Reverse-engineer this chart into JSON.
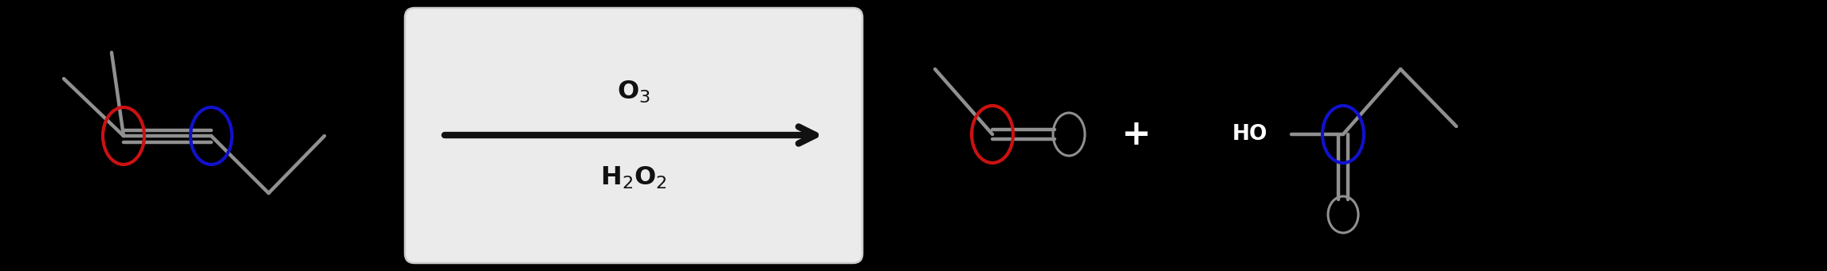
{
  "bg_color": "#000000",
  "box_color": "#ebebeb",
  "box_edge_color": "#cccccc",
  "arrow_color": "#111111",
  "reagent_above": "O$_3$",
  "reagent_below": "H$_2$O$_2$",
  "plus_sign": "+",
  "text_color": "#111111",
  "bond_color": "#909090",
  "red_circle_color": "#cc1111",
  "blue_circle_color": "#1111cc",
  "figsize": [
    22.92,
    3.41
  ],
  "dpi": 100
}
